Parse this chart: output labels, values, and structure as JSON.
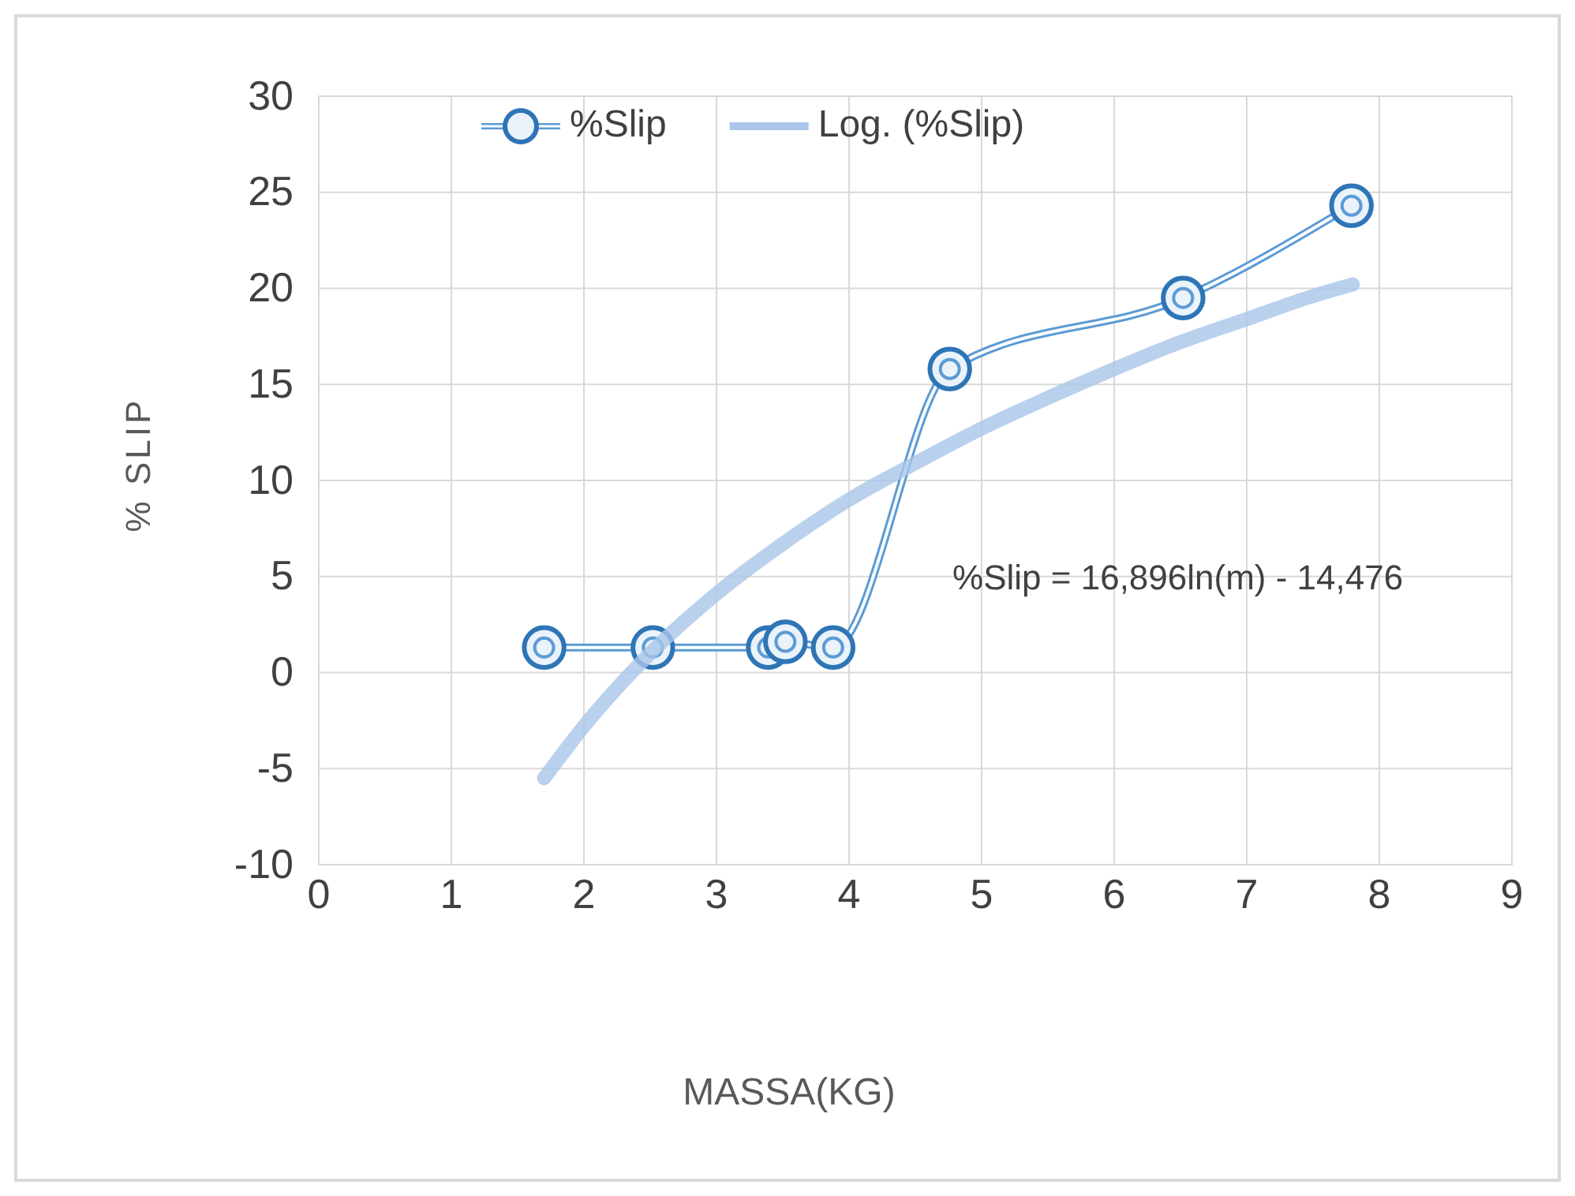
{
  "chart_data": {
    "type": "line",
    "xlabel": "MASSA(KG)",
    "ylabel": "% SLIP",
    "xlim": [
      0,
      9
    ],
    "xticks": [
      0,
      1,
      2,
      3,
      4,
      5,
      6,
      7,
      8,
      9
    ],
    "ylim": [
      -10,
      30
    ],
    "yticks": [
      -10,
      -5,
      0,
      5,
      10,
      15,
      20,
      25,
      30
    ],
    "grid": true,
    "legend": "top",
    "marker": "circle",
    "series": [
      {
        "name": "%Slip",
        "color": "#5b9bd5",
        "x": [
          1.7,
          2.52,
          3.39,
          3.52,
          3.88,
          4.76,
          6.52,
          7.79
        ],
        "values": [
          1.3,
          1.3,
          1.3,
          1.6,
          1.3,
          15.8,
          19.5,
          24.3
        ]
      },
      {
        "name": "Log. (%Slip)",
        "color": "#a9c6e8",
        "marker": "none",
        "x": [
          1.7,
          2,
          2.5,
          3,
          3.5,
          4,
          4.5,
          5,
          5.5,
          6,
          6.5,
          7,
          7.5,
          7.8
        ],
        "values": [
          -5.5,
          -2.8,
          1,
          4.1,
          6.7,
          9,
          10.9,
          12.7,
          14.3,
          15.8,
          17.2,
          18.4,
          19.6,
          20.2
        ]
      }
    ],
    "annotations": [
      "%Slip = 16,896ln(m) - 14,476"
    ]
  }
}
